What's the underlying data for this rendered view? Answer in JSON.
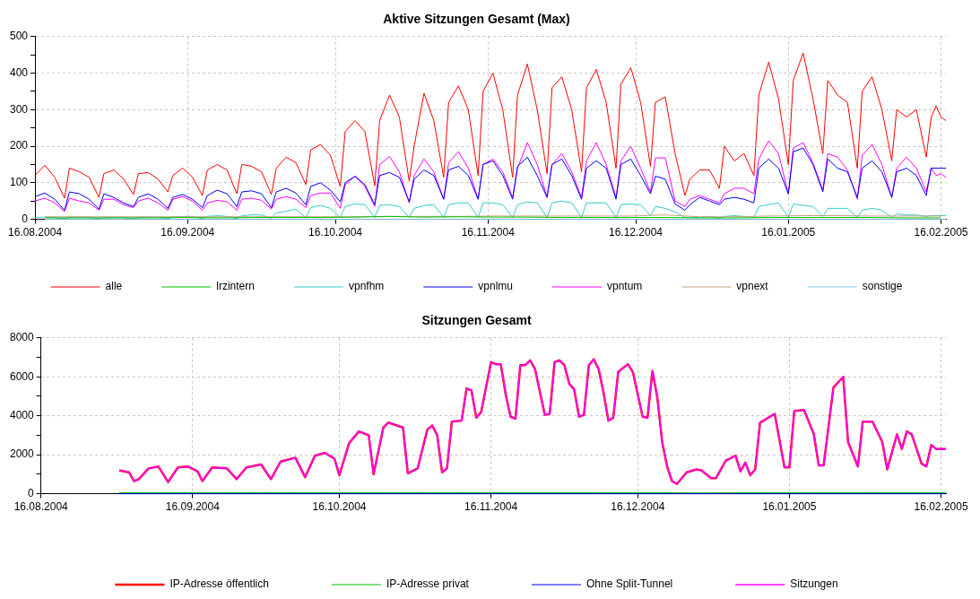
{
  "chart_data": [
    {
      "type": "line",
      "title": "Aktive Sitzungen Gesamt (Max)",
      "legend": "bottom",
      "grid": true,
      "marker": "none",
      "line_style": "solid",
      "xlim": [
        "2004-08-16",
        "2005-02-17"
      ],
      "xticks": [
        {
          "value": "2004-08-16",
          "label": "16.08.2004"
        },
        {
          "value": "2004-09-16",
          "label": "16.09.2004"
        },
        {
          "value": "2004-10-16",
          "label": "16.10.2004"
        },
        {
          "value": "2004-11-16",
          "label": "16.11.2004"
        },
        {
          "value": "2004-12-16",
          "label": "16.12.2004"
        },
        {
          "value": "2005-01-16",
          "label": "16.01.2005"
        },
        {
          "value": "2005-02-16",
          "label": "16.02.2005"
        }
      ],
      "ylim": [
        0,
        500
      ],
      "yticks": [
        0,
        {
          "value": 50,
          "label": null
        },
        100,
        {
          "value": 150,
          "label": null
        },
        200,
        {
          "value": 250,
          "label": null
        },
        300,
        {
          "value": 350,
          "label": null
        },
        400,
        {
          "value": 450,
          "label": null
        },
        500
      ],
      "x": [
        "2004-08-16",
        "2004-08-18",
        "2004-08-20",
        "2004-08-22",
        "2004-08-23",
        "2004-08-25",
        "2004-08-27",
        "2004-08-29",
        "2004-08-30",
        "2004-09-01",
        "2004-09-03",
        "2004-09-05",
        "2004-09-06",
        "2004-09-08",
        "2004-09-10",
        "2004-09-12",
        "2004-09-13",
        "2004-09-15",
        "2004-09-17",
        "2004-09-19",
        "2004-09-20",
        "2004-09-22",
        "2004-09-24",
        "2004-09-26",
        "2004-09-27",
        "2004-09-29",
        "2004-10-01",
        "2004-10-03",
        "2004-10-04",
        "2004-10-06",
        "2004-10-08",
        "2004-10-10",
        "2004-10-11",
        "2004-10-13",
        "2004-10-15",
        "2004-10-17",
        "2004-10-18",
        "2004-10-20",
        "2004-10-22",
        "2004-10-24",
        "2004-10-25",
        "2004-10-27",
        "2004-10-29",
        "2004-10-31",
        "2004-11-01",
        "2004-11-03",
        "2004-11-05",
        "2004-11-07",
        "2004-11-08",
        "2004-11-10",
        "2004-11-12",
        "2004-11-14",
        "2004-11-15",
        "2004-11-17",
        "2004-11-19",
        "2004-11-21",
        "2004-11-22",
        "2004-11-24",
        "2004-11-26",
        "2004-11-28",
        "2004-11-29",
        "2004-12-01",
        "2004-12-03",
        "2004-12-05",
        "2004-12-06",
        "2004-12-08",
        "2004-12-10",
        "2004-12-12",
        "2004-12-13",
        "2004-12-15",
        "2004-12-17",
        "2004-12-19",
        "2004-12-20",
        "2004-12-22",
        "2004-12-24",
        "2004-12-26",
        "2004-12-27",
        "2004-12-29",
        "2004-12-31",
        "2005-01-02",
        "2005-01-03",
        "2005-01-05",
        "2005-01-07",
        "2005-01-09",
        "2005-01-10",
        "2005-01-12",
        "2005-01-14",
        "2005-01-16",
        "2005-01-17",
        "2005-01-19",
        "2005-01-21",
        "2005-01-23",
        "2005-01-24",
        "2005-01-26",
        "2005-01-28",
        "2005-01-30",
        "2005-01-31",
        "2005-02-02",
        "2005-02-04",
        "2005-02-06",
        "2005-02-07",
        "2005-02-09",
        "2005-02-11",
        "2005-02-13",
        "2005-02-14",
        "2005-02-15",
        "2005-02-16",
        "2005-02-17"
      ],
      "series": [
        {
          "name": "alle",
          "color": "#ff0000",
          "values": [
            120,
            148,
            115,
            58,
            140,
            130,
            115,
            60,
            125,
            135,
            110,
            68,
            125,
            128,
            110,
            75,
            120,
            140,
            115,
            65,
            135,
            150,
            135,
            70,
            150,
            145,
            130,
            68,
            140,
            170,
            155,
            95,
            190,
            205,
            175,
            90,
            240,
            270,
            240,
            92,
            270,
            340,
            280,
            105,
            200,
            345,
            270,
            115,
            320,
            365,
            300,
            120,
            350,
            400,
            300,
            115,
            340,
            425,
            300,
            125,
            360,
            390,
            300,
            130,
            360,
            410,
            320,
            140,
            370,
            415,
            320,
            145,
            320,
            335,
            180,
            65,
            110,
            135,
            135,
            85,
            200,
            160,
            180,
            120,
            340,
            430,
            330,
            150,
            380,
            455,
            330,
            180,
            380,
            340,
            320,
            140,
            350,
            390,
            300,
            160,
            300,
            280,
            300,
            170,
            280,
            310,
            280,
            270
          ]
        },
        {
          "name": "lrzintern",
          "color": "#00c000",
          "x": [
            "2004-08-18",
            "2004-08-25",
            "2004-09-01",
            "2004-09-08",
            "2004-09-15",
            "2004-09-22",
            "2004-09-29",
            "2004-10-06",
            "2004-10-13",
            "2004-10-20",
            "2004-10-27",
            "2004-11-03",
            "2004-11-10",
            "2004-11-17",
            "2004-11-24",
            "2004-12-01",
            "2004-12-08",
            "2004-12-15",
            "2004-12-22",
            "2004-12-29",
            "2005-01-05",
            "2005-01-12",
            "2005-01-19",
            "2005-01-26",
            "2005-02-02",
            "2005-02-09",
            "2005-02-16"
          ],
          "values": [
            4,
            4,
            4,
            4,
            5,
            4,
            5,
            5,
            5,
            6,
            8,
            6,
            7,
            6,
            6,
            5,
            5,
            5,
            5,
            4,
            4,
            5,
            5,
            5,
            5,
            4,
            4
          ]
        },
        {
          "name": "vpnfhm",
          "color": "#33cccc",
          "values": [
            5,
            6,
            5,
            2,
            5,
            6,
            5,
            2,
            5,
            5,
            5,
            2,
            5,
            6,
            5,
            2,
            6,
            8,
            8,
            2,
            8,
            10,
            8,
            2,
            10,
            12,
            12,
            3,
            18,
            22,
            28,
            5,
            32,
            38,
            30,
            5,
            35,
            42,
            40,
            5,
            38,
            40,
            35,
            5,
            30,
            38,
            40,
            5,
            40,
            45,
            45,
            5,
            45,
            45,
            40,
            5,
            40,
            48,
            45,
            5,
            45,
            50,
            45,
            5,
            45,
            45,
            45,
            5,
            40,
            42,
            40,
            10,
            35,
            30,
            20,
            5,
            5,
            5,
            8,
            3,
            8,
            10,
            8,
            5,
            35,
            40,
            45,
            5,
            42,
            38,
            35,
            8,
            30,
            30,
            30,
            5,
            25,
            30,
            25,
            5,
            15,
            12,
            12,
            8,
            10,
            10,
            10,
            10
          ]
        },
        {
          "name": "vpnlmu",
          "color": "#0000ff",
          "values": [
            62,
            72,
            55,
            25,
            75,
            70,
            55,
            28,
            70,
            60,
            45,
            35,
            60,
            70,
            55,
            30,
            60,
            68,
            55,
            32,
            65,
            80,
            70,
            35,
            75,
            78,
            70,
            32,
            75,
            85,
            72,
            40,
            90,
            100,
            80,
            48,
            100,
            118,
            95,
            40,
            120,
            128,
            115,
            48,
            110,
            135,
            120,
            55,
            135,
            145,
            120,
            55,
            150,
            160,
            120,
            55,
            145,
            170,
            120,
            60,
            150,
            165,
            120,
            55,
            140,
            160,
            140,
            55,
            150,
            165,
            120,
            70,
            118,
            110,
            42,
            25,
            40,
            60,
            50,
            40,
            55,
            60,
            55,
            45,
            140,
            165,
            140,
            70,
            185,
            195,
            150,
            75,
            165,
            140,
            130,
            60,
            140,
            160,
            130,
            60,
            130,
            140,
            120,
            65,
            140,
            140,
            140,
            140
          ]
        },
        {
          "name": "vpntum",
          "color": "#ff00ff",
          "values": [
            50,
            58,
            45,
            22,
            58,
            50,
            45,
            25,
            55,
            55,
            40,
            32,
            50,
            58,
            45,
            25,
            55,
            62,
            50,
            25,
            45,
            52,
            48,
            25,
            55,
            58,
            52,
            28,
            55,
            62,
            55,
            32,
            65,
            72,
            72,
            30,
            95,
            118,
            90,
            35,
            150,
            172,
            130,
            45,
            120,
            165,
            130,
            55,
            155,
            185,
            140,
            55,
            150,
            165,
            130,
            60,
            140,
            210,
            150,
            60,
            150,
            180,
            130,
            60,
            160,
            210,
            150,
            60,
            160,
            200,
            140,
            75,
            168,
            168,
            50,
            35,
            55,
            65,
            55,
            45,
            70,
            85,
            85,
            70,
            165,
            215,
            180,
            70,
            195,
            210,
            155,
            80,
            180,
            170,
            135,
            55,
            175,
            205,
            150,
            60,
            140,
            170,
            140,
            75,
            140,
            120,
            125,
            115
          ]
        },
        {
          "name": "vpnext",
          "color": "#c8a078",
          "x": [
            "2004-08-18",
            "2004-08-25",
            "2004-09-01",
            "2004-09-08",
            "2004-09-15",
            "2004-09-22",
            "2004-09-29",
            "2004-10-06",
            "2004-10-13",
            "2004-10-20",
            "2004-10-27",
            "2004-11-03",
            "2004-11-10",
            "2004-11-17",
            "2004-11-24",
            "2004-12-01",
            "2004-12-08",
            "2004-12-15",
            "2004-12-22",
            "2004-12-29",
            "2005-01-05",
            "2005-01-12",
            "2005-01-19",
            "2005-01-26",
            "2005-02-02",
            "2005-02-09",
            "2005-02-16"
          ],
          "values": [
            7,
            7,
            7,
            7,
            7,
            7,
            7,
            7,
            7,
            7,
            8,
            8,
            8,
            9,
            9,
            9,
            9,
            9,
            12,
            7,
            7,
            9,
            10,
            10,
            9,
            9,
            9
          ]
        },
        {
          "name": "sonstige",
          "color": "#80c8e8",
          "x": [
            "2004-08-18",
            "2004-09-15",
            "2004-10-13",
            "2004-11-10",
            "2004-12-08",
            "2005-01-05",
            "2005-02-02",
            "2005-02-17"
          ],
          "values": [
            0,
            0,
            0,
            0,
            0,
            0,
            0,
            0
          ]
        }
      ]
    },
    {
      "type": "line",
      "title": "Sitzungen Gesamt",
      "legend": "bottom",
      "grid": true,
      "marker": "none",
      "line_style": "solid",
      "xlim": [
        "2004-08-16",
        "2005-02-17"
      ],
      "xticks": [
        {
          "value": "2004-08-16",
          "label": "16.08.2004"
        },
        {
          "value": "2004-09-16",
          "label": "16.09.2004"
        },
        {
          "value": "2004-10-16",
          "label": "16.10.2004"
        },
        {
          "value": "2004-11-16",
          "label": "16.11.2004"
        },
        {
          "value": "2004-12-16",
          "label": "16.12.2004"
        },
        {
          "value": "2005-01-16",
          "label": "16.01.2005"
        },
        {
          "value": "2005-02-16",
          "label": "16.02.2005"
        }
      ],
      "ylim": [
        0,
        8000
      ],
      "yticks": [
        0,
        {
          "value": 1000,
          "label": null
        },
        2000,
        {
          "value": 3000,
          "label": null
        },
        4000,
        {
          "value": 5000,
          "label": null
        },
        6000,
        {
          "value": 7000,
          "label": null
        },
        8000
      ],
      "x": [
        "2004-09-01",
        "2004-09-03",
        "2004-09-04",
        "2004-09-05",
        "2004-09-07",
        "2004-09-09",
        "2004-09-11",
        "2004-09-13",
        "2004-09-15",
        "2004-09-17",
        "2004-09-18",
        "2004-09-20",
        "2004-09-23",
        "2004-09-25",
        "2004-09-27",
        "2004-09-30",
        "2004-10-02",
        "2004-10-04",
        "2004-10-07",
        "2004-10-09",
        "2004-10-11",
        "2004-10-13",
        "2004-10-15",
        "2004-10-16",
        "2004-10-18",
        "2004-10-20",
        "2004-10-22",
        "2004-10-23",
        "2004-10-25",
        "2004-10-26",
        "2004-10-29",
        "2004-10-30",
        "2004-11-01",
        "2004-11-03",
        "2004-11-04",
        "2004-11-05",
        "2004-11-06",
        "2004-11-07",
        "2004-11-08",
        "2004-11-10",
        "2004-11-11",
        "2004-11-12",
        "2004-11-13",
        "2004-11-14",
        "2004-11-16",
        "2004-11-17",
        "2004-11-18",
        "2004-11-19",
        "2004-11-20",
        "2004-11-21",
        "2004-11-22",
        "2004-11-23",
        "2004-11-24",
        "2004-11-25",
        "2004-11-27",
        "2004-11-28",
        "2004-11-29",
        "2004-11-30",
        "2004-12-01",
        "2004-12-02",
        "2004-12-03",
        "2004-12-04",
        "2004-12-05",
        "2004-12-06",
        "2004-12-07",
        "2004-12-08",
        "2004-12-09",
        "2004-12-10",
        "2004-12-11",
        "2004-12-12",
        "2004-12-14",
        "2004-12-15",
        "2004-12-17",
        "2004-12-18",
        "2004-12-19",
        "2004-12-20",
        "2004-12-21",
        "2004-12-22",
        "2004-12-23",
        "2004-12-24",
        "2004-12-26",
        "2004-12-28",
        "2004-12-29",
        "2004-12-31",
        "2005-01-01",
        "2005-01-03",
        "2005-01-05",
        "2005-01-06",
        "2005-01-07",
        "2005-01-08",
        "2005-01-09",
        "2005-01-10",
        "2005-01-13",
        "2005-01-15",
        "2005-01-16",
        "2005-01-17",
        "2005-01-19",
        "2005-01-21",
        "2005-01-22",
        "2005-01-23",
        "2005-01-25",
        "2005-01-27",
        "2005-01-28",
        "2005-01-30",
        "2005-01-31",
        "2005-02-02",
        "2005-02-04",
        "2005-02-05",
        "2005-02-07",
        "2005-02-08",
        "2005-02-09",
        "2005-02-10",
        "2005-02-12",
        "2005-02-13",
        "2005-02-14",
        "2005-02-15",
        "2005-02-17"
      ],
      "series": [
        {
          "name": "IP-Adresse öffentlich",
          "color": "#ff0000",
          "values": [
            1200,
            1100,
            650,
            750,
            1300,
            1400,
            600,
            1350,
            1400,
            1150,
            650,
            1350,
            1300,
            750,
            1350,
            1500,
            750,
            1650,
            1850,
            850,
            1950,
            2100,
            1800,
            950,
            2600,
            3200,
            3000,
            1000,
            3400,
            3650,
            3400,
            1050,
            1300,
            3300,
            3500,
            3000,
            1100,
            1300,
            3700,
            3750,
            5400,
            5300,
            3900,
            4200,
            6750,
            6650,
            6650,
            5100,
            3950,
            3850,
            6600,
            6600,
            6850,
            6400,
            4050,
            4100,
            6750,
            6850,
            6600,
            5650,
            5350,
            3950,
            4050,
            6600,
            6900,
            6400,
            5200,
            3750,
            3900,
            6250,
            6650,
            6250,
            3950,
            3900,
            6300,
            4950,
            2650,
            1400,
            650,
            500,
            1100,
            1250,
            1200,
            800,
            800,
            1700,
            1950,
            1150,
            1600,
            950,
            1250,
            3650,
            4100,
            1350,
            1350,
            4250,
            4300,
            3050,
            1450,
            1450,
            5450,
            6000,
            2650,
            1400,
            3700,
            3700,
            2650,
            1250,
            3050,
            2300,
            3200,
            3050,
            1550,
            1400,
            2500,
            2300,
            2300
          ]
        },
        {
          "name": "IP-Adresse privat",
          "color": "#00c000",
          "x": [
            "2004-09-01",
            "2004-09-08",
            "2004-09-15",
            "2004-09-22",
            "2004-09-29",
            "2004-10-06",
            "2004-10-13",
            "2004-10-20",
            "2004-10-27",
            "2004-11-03",
            "2004-11-10",
            "2004-11-17",
            "2004-11-24",
            "2004-12-01",
            "2004-12-08",
            "2004-12-15",
            "2004-12-22",
            "2004-12-29",
            "2005-01-05",
            "2005-01-12",
            "2005-01-19",
            "2005-01-26",
            "2005-02-02",
            "2005-02-09",
            "2005-02-17"
          ],
          "values": [
            50,
            50,
            50,
            50,
            50,
            50,
            50,
            50,
            50,
            50,
            50,
            50,
            50,
            50,
            50,
            50,
            50,
            40,
            50,
            50,
            50,
            50,
            50,
            50,
            50
          ]
        },
        {
          "name": "Ohne Split-Tunnel",
          "color": "#0000ff",
          "x": [
            "2004-09-01",
            "2004-10-01",
            "2004-11-01",
            "2004-12-01",
            "2005-01-01",
            "2005-02-01",
            "2005-02-17"
          ],
          "values": [
            0,
            0,
            0,
            0,
            0,
            0,
            0
          ]
        },
        {
          "name": "Sitzungen",
          "color": "#ff00ff",
          "values": [
            1200,
            1100,
            650,
            750,
            1300,
            1400,
            600,
            1350,
            1400,
            1150,
            650,
            1350,
            1300,
            750,
            1350,
            1500,
            750,
            1650,
            1850,
            850,
            1950,
            2100,
            1800,
            950,
            2600,
            3200,
            3000,
            1000,
            3400,
            3650,
            3400,
            1050,
            1300,
            3300,
            3500,
            3000,
            1100,
            1300,
            3700,
            3750,
            5400,
            5300,
            3900,
            4200,
            6750,
            6650,
            6650,
            5100,
            3950,
            3850,
            6600,
            6600,
            6850,
            6400,
            4050,
            4100,
            6750,
            6850,
            6600,
            5650,
            5350,
            3950,
            4050,
            6600,
            6900,
            6400,
            5200,
            3750,
            3900,
            6250,
            6650,
            6250,
            3950,
            3900,
            6300,
            4950,
            2650,
            1400,
            650,
            500,
            1100,
            1250,
            1200,
            800,
            800,
            1700,
            1950,
            1150,
            1600,
            950,
            1250,
            3650,
            4100,
            1350,
            1350,
            4250,
            4300,
            3050,
            1450,
            1450,
            5450,
            6000,
            2650,
            1400,
            3700,
            3700,
            2650,
            1250,
            3050,
            2300,
            3200,
            3050,
            1550,
            1400,
            2500,
            2300,
            2300
          ]
        }
      ]
    }
  ]
}
